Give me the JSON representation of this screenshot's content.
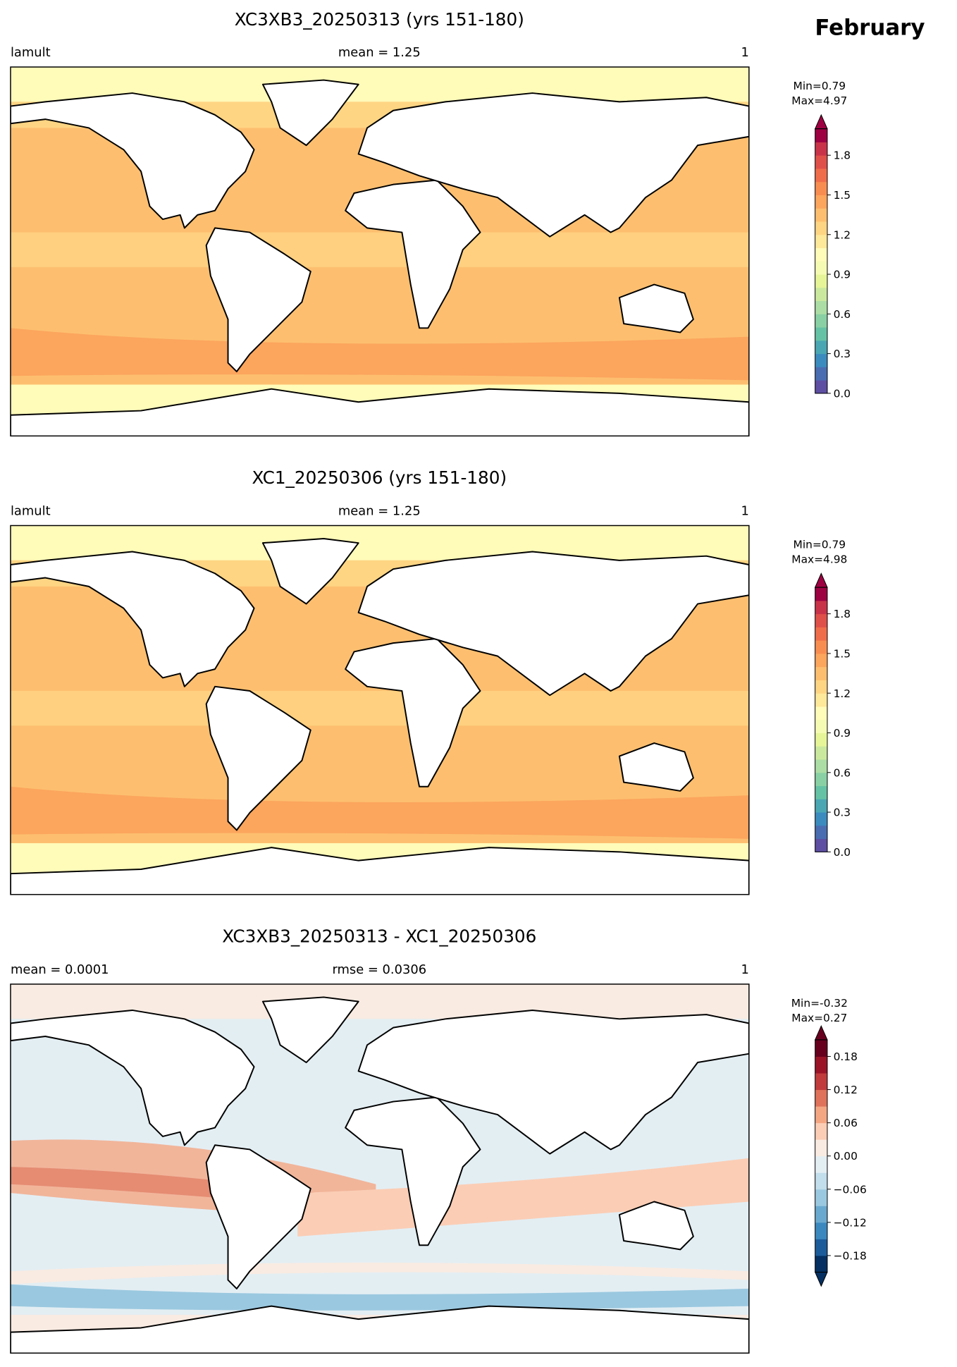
{
  "suptitle": "February",
  "panels": [
    {
      "title": "XC3XB3_20250313 (yrs 151-180)",
      "left_label": "lamult",
      "center_label": "mean = 1.25",
      "right_label": "1",
      "min_label": "Min=0.79",
      "max_label": "Max=4.97",
      "colorbar": {
        "lim": [
          0,
          2
        ],
        "extend": "max",
        "ticks": [
          {
            "value": 0,
            "label": "0.0"
          },
          0.3,
          0.6,
          0.9,
          1.2,
          1.5,
          1.8
        ],
        "colors": [
          "#5e4fa2",
          "#4a6db1",
          "#3b8bbf",
          "#4aa6b3",
          "#66c2a5",
          "#89d0a4",
          "#abdda4",
          "#cbe99e",
          "#e6f598",
          "#f5fbb2",
          "#fffbb9",
          "#fee89a",
          "#fed583",
          "#fdbf6f",
          "#fca55d",
          "#f88d51",
          "#f06d4b",
          "#e0504a",
          "#c93349",
          "#9e0142"
        ]
      }
    },
    {
      "title": "XC1_20250306 (yrs 151-180)",
      "left_label": "lamult",
      "center_label": "mean = 1.25",
      "right_label": "1",
      "min_label": "Min=0.79",
      "max_label": "Max=4.98",
      "colorbar": {
        "lim": [
          0,
          2
        ],
        "extend": "max",
        "ticks": [
          {
            "value": 0,
            "label": "0.0"
          },
          0.3,
          0.6,
          0.9,
          1.2,
          1.5,
          1.8
        ],
        "colors": [
          "#5e4fa2",
          "#4a6db1",
          "#3b8bbf",
          "#4aa6b3",
          "#66c2a5",
          "#89d0a4",
          "#abdda4",
          "#cbe99e",
          "#e6f598",
          "#f5fbb2",
          "#fffbb9",
          "#fee89a",
          "#fed583",
          "#fdbf6f",
          "#fca55d",
          "#f88d51",
          "#f06d4b",
          "#e0504a",
          "#c93349",
          "#9e0142"
        ]
      }
    },
    {
      "title": "XC3XB3_20250313 - XC1_20250306",
      "left_label": "mean = 0.0001",
      "center_label": "rmse = 0.0306",
      "right_label": "1",
      "min_label": "Min=-0.32",
      "max_label": "Max=0.27",
      "colorbar": {
        "lim": [
          -0.21,
          0.21
        ],
        "extend": "both",
        "ticks": [
          {
            "value": -0.18,
            "label": "−0.18"
          },
          {
            "value": -0.12,
            "label": "−0.12"
          },
          {
            "value": -0.06,
            "label": "−0.06"
          },
          {
            "value": 0,
            "label": "0.00"
          },
          0.06,
          0.12,
          0.18
        ],
        "colors": [
          "#053061",
          "#1c5c9b",
          "#3b88bf",
          "#6aa9cf",
          "#9ac8e0",
          "#c2ddeb",
          "#e3eef3",
          "#f9ebe2",
          "#fbcdb5",
          "#f4a683",
          "#de725a",
          "#c13b3c",
          "#9a1327",
          "#67001f"
        ]
      }
    }
  ]
}
